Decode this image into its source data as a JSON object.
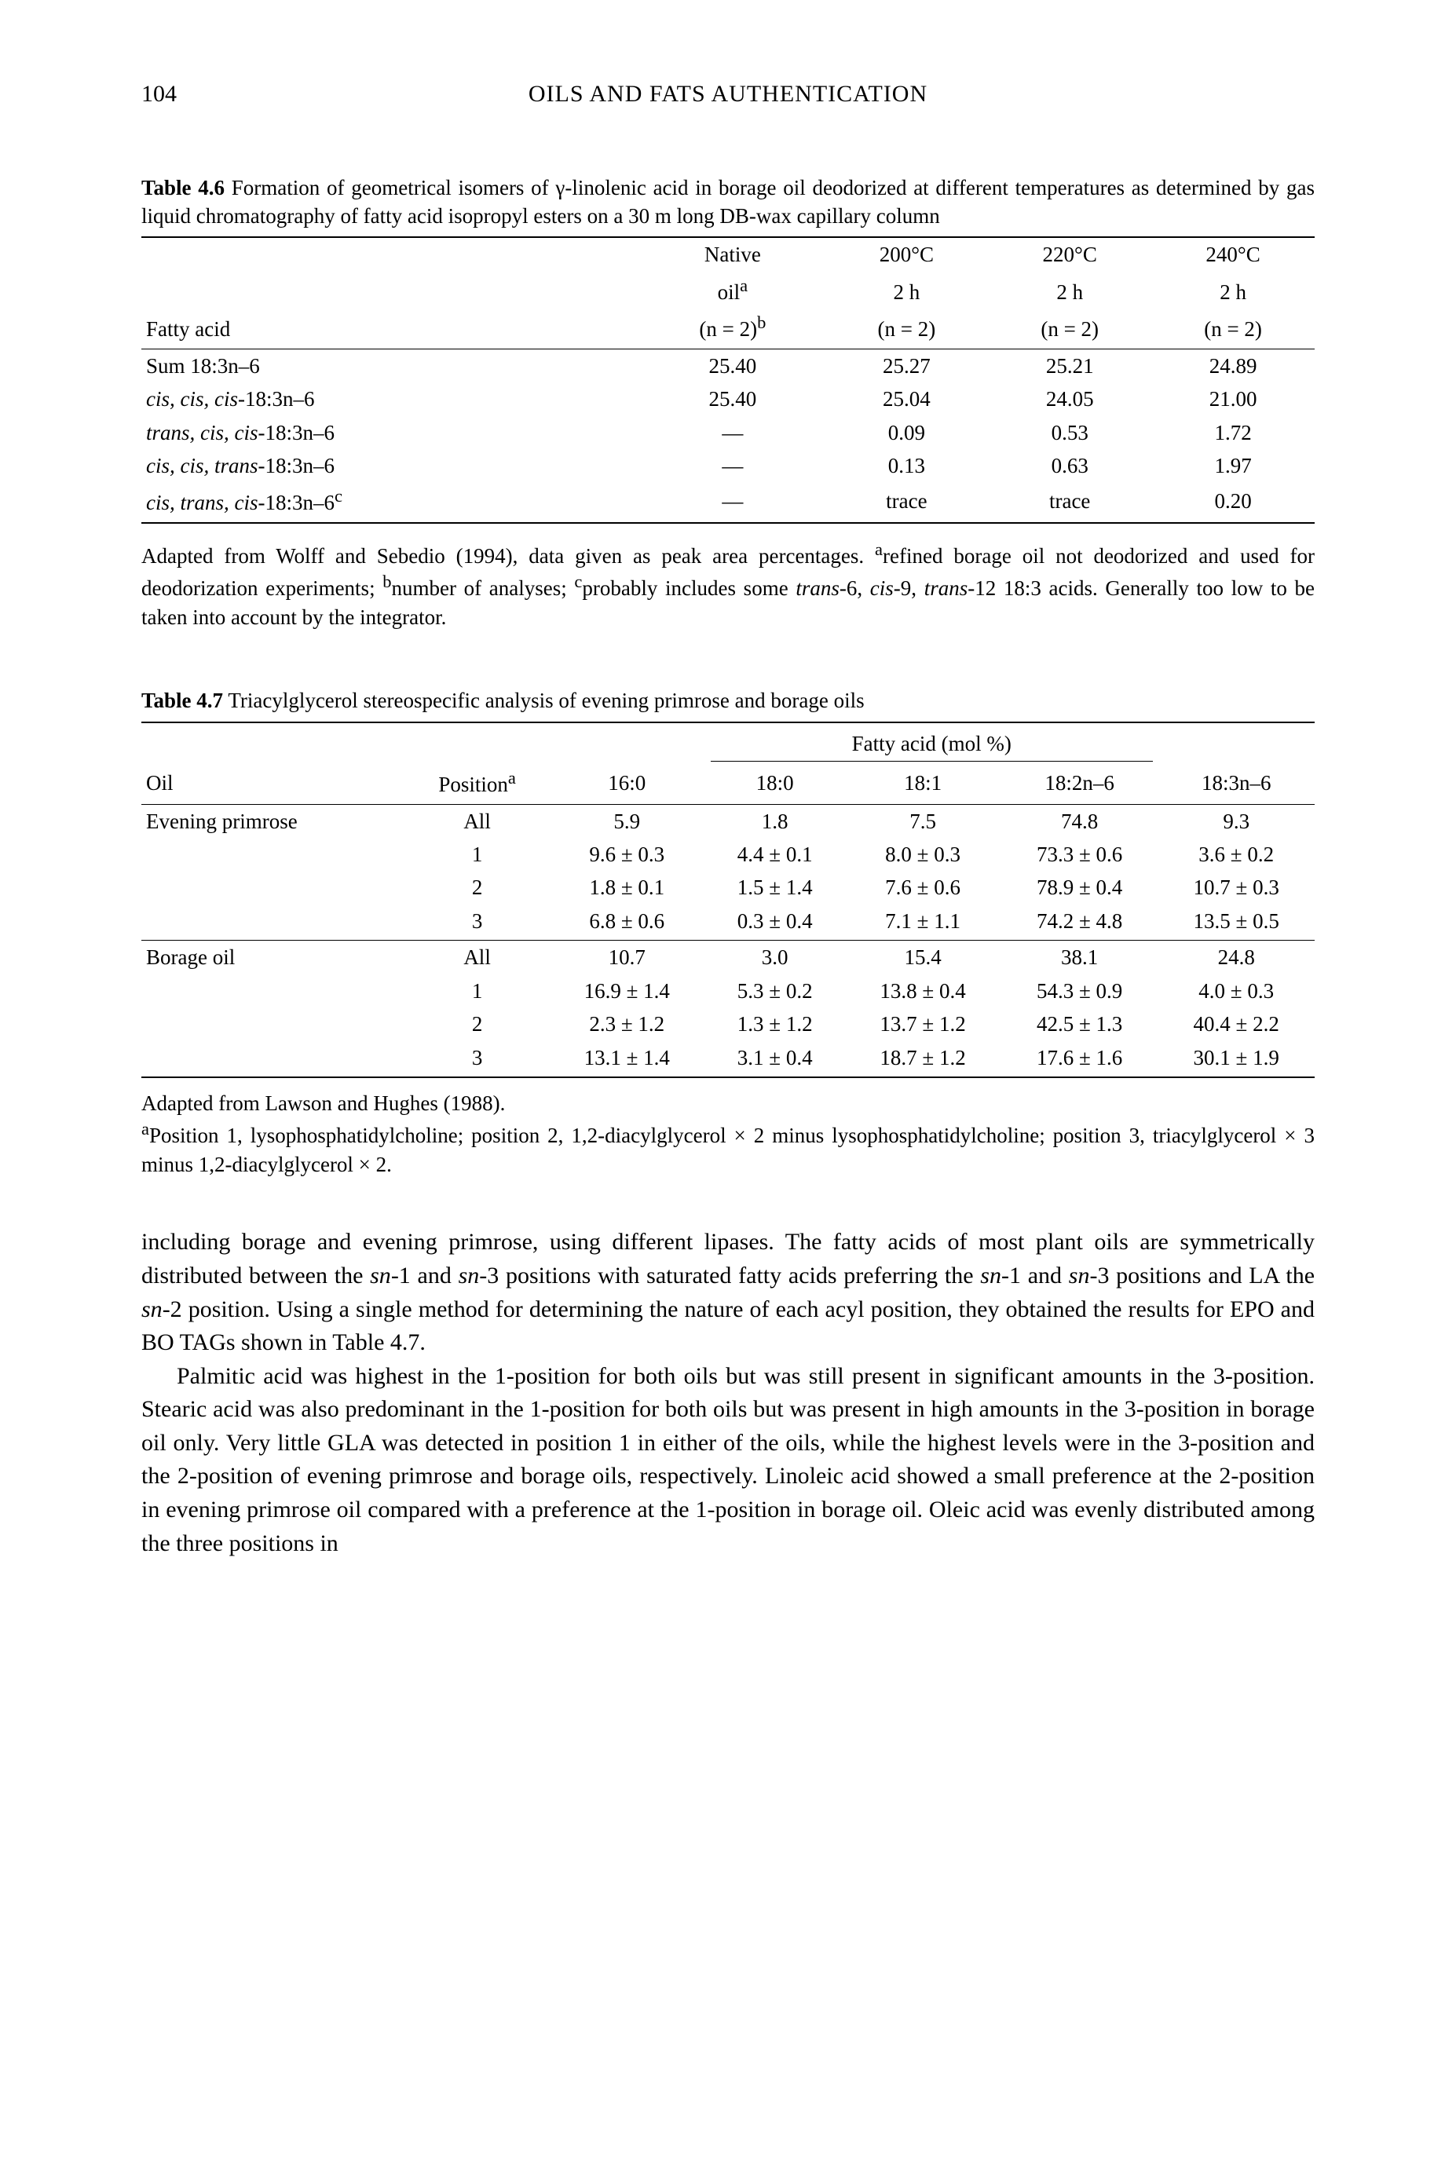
{
  "page": {
    "number": "104",
    "running_head": "OILS AND FATS AUTHENTICATION"
  },
  "table46": {
    "label": "Table 4.6",
    "caption": "Formation of geometrical isomers of γ-linolenic acid in borage oil deodorized at different temperatures as determined by gas liquid chromatography of fatty acid isopropyl esters on a 30 m long DB-wax capillary column",
    "col_headers": {
      "fa": "Fatty acid",
      "native_l1": "Native",
      "native_l2_html": "oil<sup>a</sup>",
      "native_l3_html": "(n = 2)<sup>b</sup>",
      "c200_l1": "200°C",
      "c200_l2": "2 h",
      "c200_l3": "(n = 2)",
      "c220_l1": "220°C",
      "c220_l2": "2 h",
      "c220_l3": "(n = 2)",
      "c240_l1": "240°C",
      "c240_l2": "2 h",
      "c240_l3": "(n = 2)"
    },
    "rows": [
      {
        "fa_html": "Sum 18:3n–6",
        "c1": "25.40",
        "c2": "25.27",
        "c3": "25.21",
        "c4": "24.89"
      },
      {
        "fa_html": "<span class=\"italic\">cis, cis, cis</span>-18:3n–6",
        "c1": "25.40",
        "c2": "25.04",
        "c3": "24.05",
        "c4": "21.00"
      },
      {
        "fa_html": "<span class=\"italic\">trans, cis, cis</span>-18:3n–6",
        "c1": "—",
        "c2": "0.09",
        "c3": "0.53",
        "c4": "1.72"
      },
      {
        "fa_html": "<span class=\"italic\">cis, cis, trans</span>-18:3n–6",
        "c1": "—",
        "c2": "0.13",
        "c3": "0.63",
        "c4": "1.97"
      },
      {
        "fa_html": "<span class=\"italic\">cis, trans, cis</span>-18:3n–6<sup>c</sup>",
        "c1": "—",
        "c2": "trace",
        "c3": "trace",
        "c4": "0.20"
      }
    ],
    "footnote_html": "Adapted from Wolff and Sebedio (1994), data given as peak area percentages. <sup>a</sup>refined borage oil not deodorized and used for deodorization experiments; <sup>b</sup>number of analyses; <sup>c</sup>probably includes some <span class=\"italic\">trans</span>-6, <span class=\"italic\">cis</span>-9, <span class=\"italic\">trans</span>-12 18:3 acids. Generally too low to be taken into account by the integrator."
  },
  "table47": {
    "label": "Table 4.7",
    "caption": "Triacylglycerol stereospecific analysis of evening primrose and borage oils",
    "spanner": "Fatty acid (mol %)",
    "col_headers": {
      "oil": "Oil",
      "pos_html": "Position<sup>a</sup>",
      "c160": "16:0",
      "c180": "18:0",
      "c181": "18:1",
      "c182": "18:2n–6",
      "c183": "18:3n–6"
    },
    "rows_ep": [
      {
        "oil": "Evening primrose",
        "pos": "All",
        "v1": "5.9",
        "v2": "1.8",
        "v3": "7.5",
        "v4": "74.8",
        "v5": "9.3"
      },
      {
        "oil": "",
        "pos": "1",
        "v1": "9.6 ± 0.3",
        "v2": "4.4 ± 0.1",
        "v3": "8.0 ± 0.3",
        "v4": "73.3 ± 0.6",
        "v5": "3.6 ± 0.2"
      },
      {
        "oil": "",
        "pos": "2",
        "v1": "1.8 ± 0.1",
        "v2": "1.5 ± 1.4",
        "v3": "7.6 ± 0.6",
        "v4": "78.9 ± 0.4",
        "v5": "10.7 ± 0.3"
      },
      {
        "oil": "",
        "pos": "3",
        "v1": "6.8 ± 0.6",
        "v2": "0.3 ± 0.4",
        "v3": "7.1 ± 1.1",
        "v4": "74.2 ± 4.8",
        "v5": "13.5 ± 0.5"
      }
    ],
    "rows_bo": [
      {
        "oil": "Borage oil",
        "pos": "All",
        "v1": "10.7",
        "v2": "3.0",
        "v3": "15.4",
        "v4": "38.1",
        "v5": "24.8"
      },
      {
        "oil": "",
        "pos": "1",
        "v1": "16.9 ± 1.4",
        "v2": "5.3 ± 0.2",
        "v3": "13.8 ± 0.4",
        "v4": "54.3 ± 0.9",
        "v5": "4.0 ± 0.3"
      },
      {
        "oil": "",
        "pos": "2",
        "v1": "2.3 ± 1.2",
        "v2": "1.3 ± 1.2",
        "v3": "13.7 ± 1.2",
        "v4": "42.5 ± 1.3",
        "v5": "40.4 ± 2.2"
      },
      {
        "oil": "",
        "pos": "3",
        "v1": "13.1 ± 1.4",
        "v2": "3.1 ± 0.4",
        "v3": "18.7 ± 1.2",
        "v4": "17.6 ± 1.6",
        "v5": "30.1 ± 1.9"
      }
    ],
    "footnote_html": "Adapted from Lawson and Hughes (1988).<br><sup>a</sup>Position 1, lysophosphatidylcholine; position 2, 1,2-diacylglycerol × 2 minus lysophosphatidylcholine; position 3, triacylglycerol × 3 minus 1,2-diacylglycerol × 2."
  },
  "body": {
    "p1_html": "including borage and evening primrose, using different lipases. The fatty acids of most plant oils are symmetrically distributed between the <span class=\"italic\">sn</span>-1 and <span class=\"italic\">sn</span>-3 positions with saturated fatty acids preferring the <span class=\"italic\">sn</span>-1 and <span class=\"italic\">sn</span>-3 positions and LA the <span class=\"italic\">sn</span>-2 position. Using a single method for determining the nature of each acyl position, they obtained the results for EPO and BO TAGs shown in Table 4.7.",
    "p2_html": "Palmitic acid was highest in the 1-position for both oils but was still present in significant amounts in the 3-position. Stearic acid was also predominant in the 1-position for both oils but was present in high amounts in the 3-position in borage oil only. Very little GLA was detected in position 1 in either of the oils, while the highest levels were in the 3-position and the 2-position of evening primrose and borage oils, respectively. Linoleic acid showed a small preference at the 2-position in evening primrose oil compared with a preference at the 1-position in borage oil. Oleic acid was evenly distributed among the three positions in"
  }
}
